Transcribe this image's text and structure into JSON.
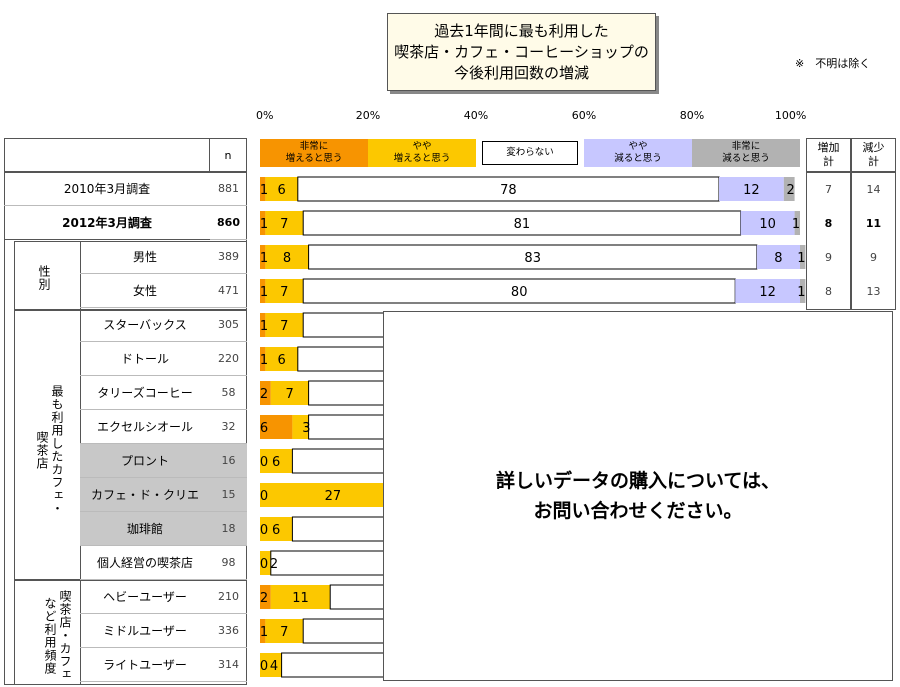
{
  "title": {
    "line1": "過去1年間に最も利用した",
    "line2": "喫茶店・カフェ・コーヒーショップの",
    "line3": "今後利用回数の増減"
  },
  "note": "※　不明は除く",
  "header": {
    "n_label": "n",
    "increase_total": [
      "増加",
      "計"
    ],
    "decrease_total": [
      "減少",
      "計"
    ]
  },
  "overlay": {
    "line1": "詳しいデータの購入については、",
    "line2": "お問い合わせください。"
  },
  "groups": {
    "gender": "性別",
    "cafe": "最も利用したカフェ・喫茶店",
    "usage": "喫茶店・カフェなど利用頻度"
  },
  "colors": {
    "very_increase": "#f79401",
    "somewhat_increase": "#fcc800",
    "no_change": "#ffffff",
    "somewhat_decrease": "#c7c7ff",
    "very_decrease": "#b2b2b2"
  },
  "chart_data": {
    "type": "bar",
    "orientation": "horizontal-stacked-100",
    "axis_ticks": [
      "0%",
      "20%",
      "40%",
      "60%",
      "80%",
      "100%"
    ],
    "xlim": [
      0,
      100
    ],
    "series": [
      {
        "name": "非常に増えると思う",
        "label": [
          "非常に",
          "増えると思う"
        ]
      },
      {
        "name": "やや増えると思う",
        "label": [
          "やや",
          "増えると思う"
        ]
      },
      {
        "name": "変わらない",
        "label": [
          "変わらない"
        ]
      },
      {
        "name": "やや減ると思う",
        "label": [
          "やや",
          "減ると思う"
        ]
      },
      {
        "name": "非常に減ると思う",
        "label": [
          "非常に",
          "減ると思う"
        ]
      }
    ],
    "rows": [
      {
        "label": "2010年3月調査",
        "n": "881",
        "values": [
          1,
          6,
          78,
          12,
          2
        ],
        "increase": "7",
        "decrease": "14",
        "bold": false,
        "hidden_from": null
      },
      {
        "label": "2012年3月調査",
        "n": "860",
        "values": [
          1,
          7,
          81,
          10,
          1
        ],
        "increase": "8",
        "decrease": "11",
        "bold": true,
        "hidden_from": null
      },
      {
        "label": "男性",
        "n": "389",
        "values": [
          1,
          8,
          83,
          8,
          1
        ],
        "increase": "9",
        "decrease": "9",
        "bold": false,
        "hidden_from": null
      },
      {
        "label": "女性",
        "n": "471",
        "values": [
          1,
          7,
          80,
          12,
          1
        ],
        "increase": "8",
        "decrease": "13",
        "bold": false,
        "hidden_from": null
      },
      {
        "label": "スターバックス",
        "n": "305",
        "values": [
          1,
          7
        ],
        "bold": false,
        "gray": false
      },
      {
        "label": "ドトール",
        "n": "220",
        "values": [
          1,
          6
        ],
        "bold": false,
        "gray": false
      },
      {
        "label": "タリーズコーヒー",
        "n": "58",
        "values": [
          2,
          7
        ],
        "bold": false,
        "gray": false
      },
      {
        "label": "エクセルシオール",
        "n": "32",
        "values": [
          6,
          3
        ],
        "bold": false,
        "gray": false
      },
      {
        "label": "プロント",
        "n": "16",
        "values": [
          0,
          6
        ],
        "bold": false,
        "gray": true
      },
      {
        "label": "カフェ・ド・クリエ",
        "n": "15",
        "values": [
          0,
          27
        ],
        "bold": false,
        "gray": true
      },
      {
        "label": "珈琲館",
        "n": "18",
        "values": [
          0,
          6
        ],
        "bold": false,
        "gray": true
      },
      {
        "label": "個人経営の喫茶店",
        "n": "98",
        "values": [
          0,
          2
        ],
        "bold": false,
        "gray": false
      },
      {
        "label": "ヘビーユーザー",
        "n": "210",
        "values": [
          2,
          11
        ],
        "bold": false,
        "gray": false
      },
      {
        "label": "ミドルユーザー",
        "n": "336",
        "values": [
          1,
          7
        ],
        "bold": false,
        "gray": false
      },
      {
        "label": "ライトユーザー",
        "n": "314",
        "values": [
          0,
          4
        ],
        "bold": false,
        "gray": false
      }
    ]
  }
}
